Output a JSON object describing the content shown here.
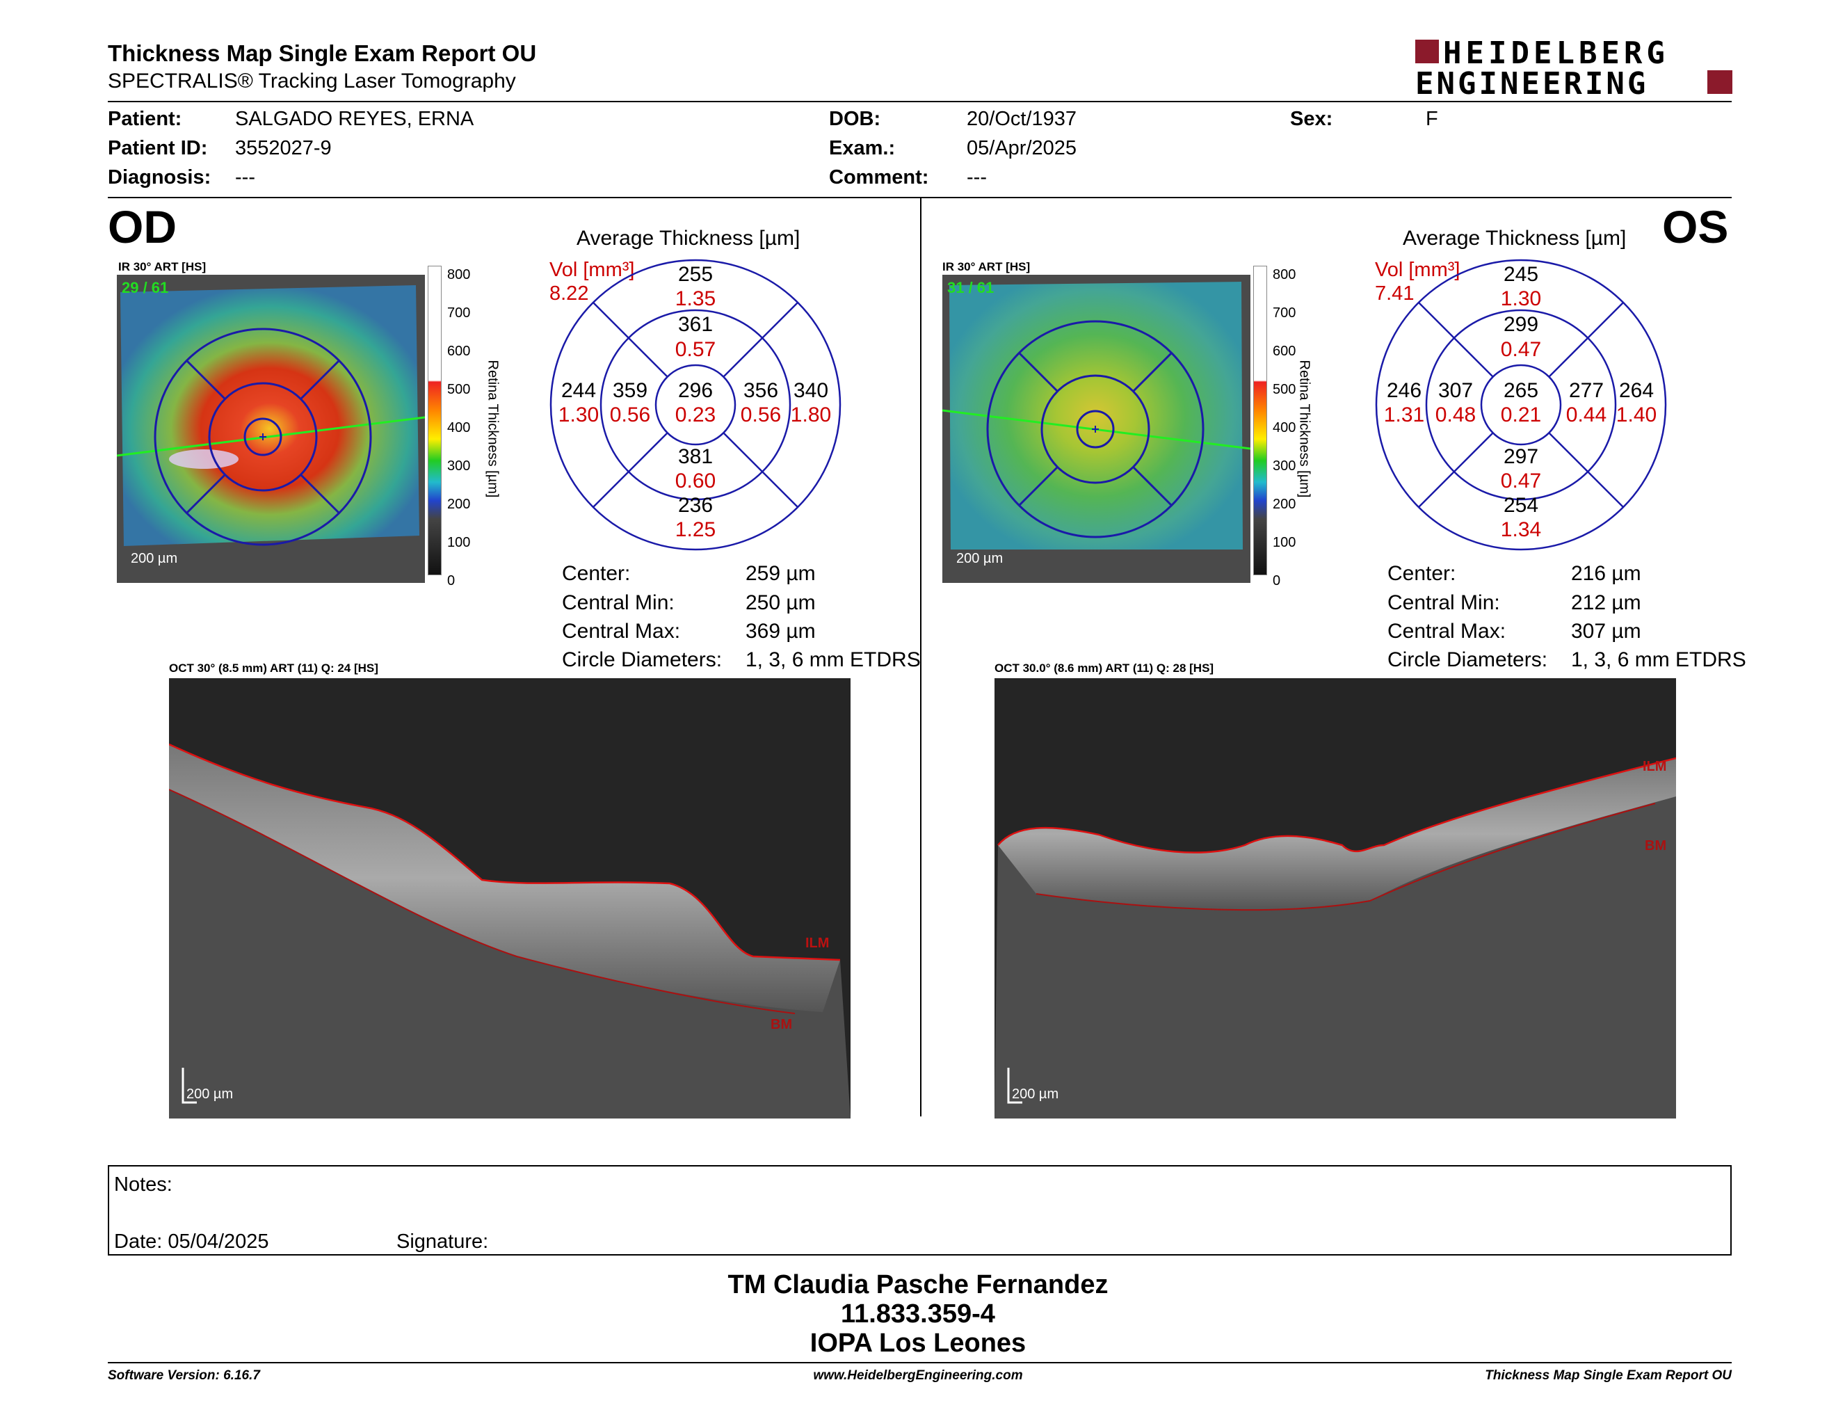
{
  "header": {
    "title": "Thickness Map Single Exam Report OU",
    "subtitle": "SPECTRALIS® Tracking Laser Tomography",
    "logo_line1": "HEIDELBERG",
    "logo_line2": "ENGINEERING",
    "logo_color": "#8b1a2b"
  },
  "patient": {
    "patient_label": "Patient:",
    "patient_value": "SALGADO REYES, ERNA",
    "id_label": "Patient ID:",
    "id_value": "3552027-9",
    "diagnosis_label": "Diagnosis:",
    "diagnosis_value": "---",
    "dob_label": "DOB:",
    "dob_value": "20/Oct/1937",
    "exam_label": "Exam.:",
    "exam_value": "05/Apr/2025",
    "comment_label": "Comment:",
    "comment_value": "---",
    "sex_label": "Sex:",
    "sex_value": "F"
  },
  "od": {
    "eye": "OD",
    "ir_label": "IR 30° ART [HS]",
    "frame": "29 / 61",
    "scale": "200 µm",
    "scale_ticks": [
      "800",
      "700",
      "600",
      "500",
      "400",
      "300",
      "200",
      "100",
      "0"
    ],
    "scale_title": "Retina Thickness [µm]",
    "avg_title": "Average Thickness [µm]",
    "vol_label": "Vol [mm³]",
    "vol_value": "8.22",
    "sectors": {
      "outer_sup": {
        "t": "255",
        "v": "1.35"
      },
      "inner_sup": {
        "t": "361",
        "v": "0.57"
      },
      "outer_temp": {
        "t": "244",
        "v": "1.30"
      },
      "inner_temp": {
        "t": "359",
        "v": "0.56"
      },
      "center": {
        "t": "296",
        "v": "0.23"
      },
      "inner_nas": {
        "t": "356",
        "v": "0.56"
      },
      "outer_nas": {
        "t": "340",
        "v": "1.80"
      },
      "inner_inf": {
        "t": "381",
        "v": "0.60"
      },
      "outer_inf": {
        "t": "236",
        "v": "1.25"
      }
    },
    "stats": [
      {
        "label": "Center:",
        "value": "259 µm"
      },
      {
        "label": "Central Min:",
        "value": "250 µm"
      },
      {
        "label": "Central Max:",
        "value": "369 µm"
      },
      {
        "label": "Circle Diameters:",
        "value": "1, 3, 6 mm ETDRS"
      }
    ],
    "oct_label": "OCT 30° (8.5 mm) ART (11) Q: 24 [HS]",
    "oct_scale": "200 µm",
    "ilm": "ILM",
    "bm": "BM"
  },
  "os": {
    "eye": "OS",
    "ir_label": "IR 30° ART [HS]",
    "frame": "31 / 61",
    "scale": "200 µm",
    "scale_ticks": [
      "800",
      "700",
      "600",
      "500",
      "400",
      "300",
      "200",
      "100",
      "0"
    ],
    "scale_title": "Retina Thickness [µm]",
    "avg_title": "Average Thickness [µm]",
    "vol_label": "Vol [mm³]",
    "vol_value": "7.41",
    "sectors": {
      "outer_sup": {
        "t": "245",
        "v": "1.30"
      },
      "inner_sup": {
        "t": "299",
        "v": "0.47"
      },
      "outer_temp": {
        "t": "246",
        "v": "1.31"
      },
      "inner_temp": {
        "t": "307",
        "v": "0.48"
      },
      "center": {
        "t": "265",
        "v": "0.21"
      },
      "inner_nas": {
        "t": "277",
        "v": "0.44"
      },
      "outer_nas": {
        "t": "264",
        "v": "1.40"
      },
      "inner_inf": {
        "t": "297",
        "v": "0.47"
      },
      "outer_inf": {
        "t": "254",
        "v": "1.34"
      }
    },
    "stats": [
      {
        "label": "Center:",
        "value": "216 µm"
      },
      {
        "label": "Central Min:",
        "value": "212 µm"
      },
      {
        "label": "Central Max:",
        "value": "307 µm"
      },
      {
        "label": "Circle Diameters:",
        "value": "1, 3, 6 mm ETDRS"
      }
    ],
    "oct_label": "OCT 30.0° (8.6 mm) ART (11) Q: 28 [HS]",
    "oct_scale": "200 µm",
    "ilm": "ILM",
    "bm": "BM"
  },
  "notes": {
    "notes_label": "Notes:",
    "date_label": "Date: 05/04/2025",
    "signature_label": "Signature:"
  },
  "signature_block": {
    "line1": "TM Claudia Pasche Fernandez",
    "line2": "11.833.359-4",
    "line3": "IOPA Los Leones"
  },
  "footer": {
    "left": "Software Version: 6.16.7",
    "center": "www.HeidelbergEngineering.com",
    "right": "Thickness Map Single Exam Report OU"
  }
}
